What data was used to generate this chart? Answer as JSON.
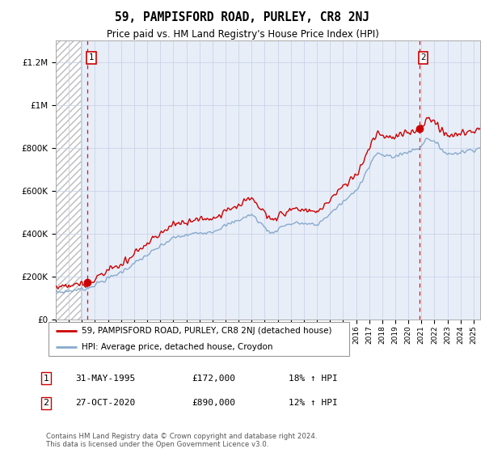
{
  "title": "59, PAMPISFORD ROAD, PURLEY, CR8 2NJ",
  "subtitle": "Price paid vs. HM Land Registry's House Price Index (HPI)",
  "legend_line1": "59, PAMPISFORD ROAD, PURLEY, CR8 2NJ (detached house)",
  "legend_line2": "HPI: Average price, detached house, Croydon",
  "sale1_label": "1",
  "sale1_date": "31-MAY-1995",
  "sale1_price": "£172,000",
  "sale1_hpi": "18% ↑ HPI",
  "sale2_label": "2",
  "sale2_date": "27-OCT-2020",
  "sale2_price": "£890,000",
  "sale2_hpi": "12% ↑ HPI",
  "footer": "Contains HM Land Registry data © Crown copyright and database right 2024.\nThis data is licensed under the Open Government Licence v3.0.",
  "sale1_x": 1995.42,
  "sale1_y": 172000,
  "sale2_x": 2020.83,
  "sale2_y": 890000,
  "price_color": "#cc0000",
  "hpi_color": "#88aacc",
  "hatch_edgecolor": "#bbbbbb",
  "plot_bg": "#e8eef8",
  "grid_color": "#c8d4e8",
  "ylim": [
    0,
    1300000
  ],
  "xlim_start": 1993,
  "xlim_end": 2025.5,
  "hatch_end": 1994.92,
  "yticks": [
    0,
    200000,
    400000,
    600000,
    800000,
    1000000,
    1200000
  ],
  "ylabels": [
    "£0",
    "£200K",
    "£400K",
    "£600K",
    "£800K",
    "£1M",
    "£1.2M"
  ]
}
